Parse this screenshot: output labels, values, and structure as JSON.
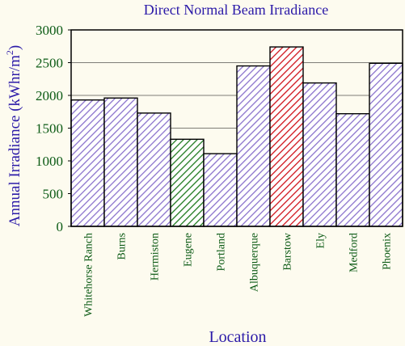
{
  "chart_data": {
    "type": "bar",
    "title": "Direct Normal Beam Irradiance",
    "xlabel": "Location",
    "ylabel_base": "Annual Irradiance (kWhr/m",
    "ylabel_sup": "2",
    "ylabel_close": ")",
    "categories": [
      "Whitehorse Ranch",
      "Burns",
      "Hermiston",
      "Eugene",
      "Portland",
      "Albuquerque",
      "Barstow",
      "Ely",
      "Medford",
      "Phoenix"
    ],
    "values": [
      1930,
      1960,
      1730,
      1330,
      1110,
      2450,
      2740,
      2190,
      1720,
      2490
    ],
    "bar_colors": [
      "#8a72cc",
      "#8a72cc",
      "#8a72cc",
      "#1f7a1f",
      "#8a72cc",
      "#8a72cc",
      "#d0121b",
      "#8a72cc",
      "#8a72cc",
      "#8a72cc"
    ],
    "ylim": [
      0,
      3000
    ],
    "yticks": [
      0,
      500,
      1000,
      1500,
      2000,
      2500,
      3000
    ],
    "grid": true,
    "legend": "none"
  }
}
